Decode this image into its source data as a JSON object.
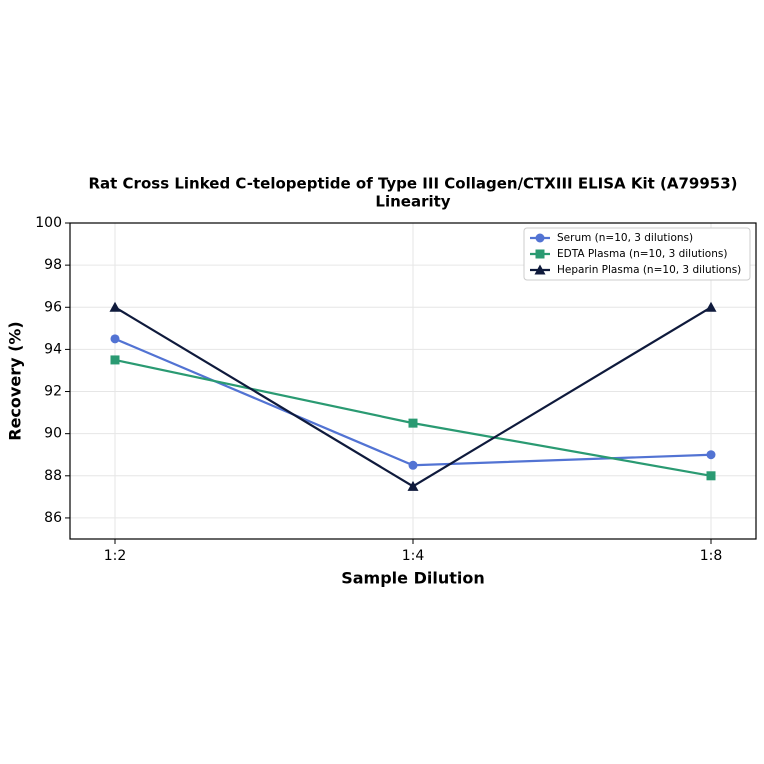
{
  "chart_data": {
    "type": "line",
    "title": "Rat Cross Linked C-telopeptide of Type III Collagen/CTXIII ELISA Kit (A79953)",
    "subtitle": "Linearity",
    "x_label": "Sample Dilution",
    "y_label": "Recovery (%)",
    "categories": [
      "1:2",
      "1:4",
      "1:8"
    ],
    "series": [
      {
        "name": "Serum (n=10, 3 dilutions)",
        "color": "#5273d3",
        "marker": "circle",
        "values": [
          94.5,
          88.5,
          89
        ]
      },
      {
        "name": "EDTA Plasma (n=10, 3 dilutions)",
        "color": "#2a9a72",
        "marker": "square",
        "values": [
          93.5,
          90.5,
          88
        ]
      },
      {
        "name": "Heparin Plasma (n=10, 3 dilutions)",
        "color": "#0f1a3c",
        "marker": "triangle",
        "values": [
          96,
          87.5,
          96
        ]
      }
    ],
    "ylim": [
      85,
      100
    ],
    "yticks": [
      86,
      88,
      90,
      92,
      94,
      96,
      98,
      100
    ],
    "grid": true,
    "legend": "upper right"
  }
}
